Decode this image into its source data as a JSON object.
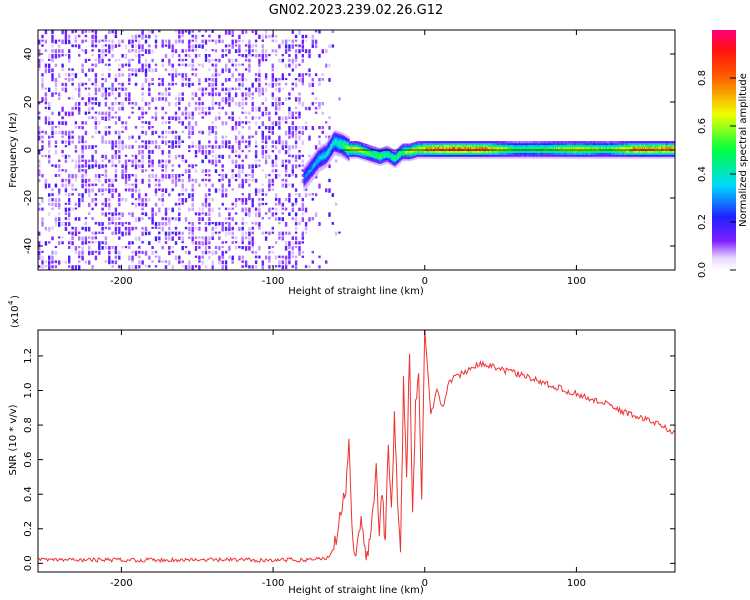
{
  "figure_title": "GN02.2023.239.02.26.G12",
  "chart_data": [
    {
      "type": "heatmap",
      "title": "",
      "xlabel": "Height of straight line (km)",
      "ylabel": "Frequency (Hz)",
      "xlim": [
        -255,
        165
      ],
      "ylim": [
        -50,
        50
      ],
      "x_ticks": [
        -200,
        -100,
        0,
        100
      ],
      "y_ticks": [
        -40,
        -20,
        0,
        20,
        40
      ],
      "grid": false,
      "colormap": "rainbow (white-purple-blue-cyan-green-yellow-red-magenta)",
      "noise_region_x": [
        -255,
        -80
      ],
      "transition_region_x": [
        -80,
        -55
      ],
      "carrier_frequency_hz": 0,
      "ridge": {
        "x": [
          -80,
          -75,
          -70,
          -65,
          -60,
          -55,
          -50,
          -45,
          -40,
          -35,
          -30,
          -25,
          -20,
          -15,
          -10,
          -5,
          0,
          20,
          40,
          60,
          80,
          100,
          120,
          140,
          165
        ],
        "frequency_hz": [
          -12,
          -8,
          -4,
          -2,
          3,
          2,
          0,
          0,
          -1,
          -2,
          -3,
          -2,
          -4,
          -1,
          -1,
          0,
          0,
          0,
          0,
          0,
          0,
          0,
          0,
          0,
          0
        ],
        "amplitude": [
          0.3,
          0.35,
          0.4,
          0.4,
          0.45,
          0.5,
          0.7,
          0.75,
          0.65,
          0.55,
          0.6,
          0.5,
          0.55,
          0.6,
          0.7,
          0.75,
          0.85,
          0.95,
          0.9,
          0.55,
          0.6,
          0.75,
          0.6,
          0.9,
          0.85
        ]
      },
      "colorbar": {
        "label": "Normalized spectral amplitude",
        "range": [
          0,
          1
        ],
        "ticks": [
          "0.0",
          "0.2",
          "0.4",
          "0.6",
          "0.8"
        ],
        "tick_values": [
          0,
          0.2,
          0.4,
          0.6,
          0.8
        ]
      }
    },
    {
      "type": "line",
      "title": "",
      "xlabel": "Height of straight line (km)",
      "ylabel": "SNR (10 * v/v)",
      "y_multiplier_label": "(x10",
      "y_multiplier_exponent": "4",
      "xlim": [
        -255,
        165
      ],
      "ylim": [
        -0.05,
        1.35
      ],
      "x_ticks": [
        -200,
        -100,
        0,
        100
      ],
      "y_ticks": [
        0.0,
        0.2,
        0.4,
        0.6,
        0.8,
        1.0,
        1.2
      ],
      "y_tick_labels": [
        "0.0",
        "0.2",
        "0.4",
        "0.6",
        "0.8",
        "1.0",
        "1.2"
      ],
      "grid": false,
      "series_color": "#ee3333",
      "series": [
        {
          "name": "",
          "x": [
            -255,
            -220,
            -180,
            -140,
            -100,
            -80,
            -65,
            -60,
            -56,
            -52,
            -50,
            -48,
            -46,
            -44,
            -42,
            -40,
            -38,
            -36,
            -34,
            -32,
            -30,
            -28,
            -26,
            -24,
            -22,
            -20,
            -18,
            -16,
            -14,
            -12,
            -10,
            -8,
            -6,
            -4,
            -2,
            0,
            4,
            8,
            12,
            16,
            20,
            25,
            30,
            35,
            40,
            50,
            60,
            70,
            80,
            90,
            100,
            110,
            120,
            130,
            140,
            150,
            160,
            165
          ],
          "y": [
            0.02,
            0.02,
            0.02,
            0.02,
            0.02,
            0.02,
            0.03,
            0.08,
            0.25,
            0.45,
            0.75,
            0.22,
            0.05,
            0.15,
            0.25,
            0.1,
            0.05,
            0.15,
            0.3,
            0.55,
            0.2,
            0.4,
            0.1,
            0.7,
            0.3,
            0.85,
            0.4,
            0.02,
            1.05,
            0.5,
            1.23,
            0.3,
            0.9,
            1.12,
            0.35,
            1.35,
            0.85,
            1.0,
            0.9,
            1.05,
            1.08,
            1.1,
            1.13,
            1.15,
            1.15,
            1.12,
            1.1,
            1.07,
            1.04,
            1.01,
            0.98,
            0.95,
            0.92,
            0.88,
            0.85,
            0.82,
            0.78,
            0.76
          ]
        }
      ]
    }
  ]
}
